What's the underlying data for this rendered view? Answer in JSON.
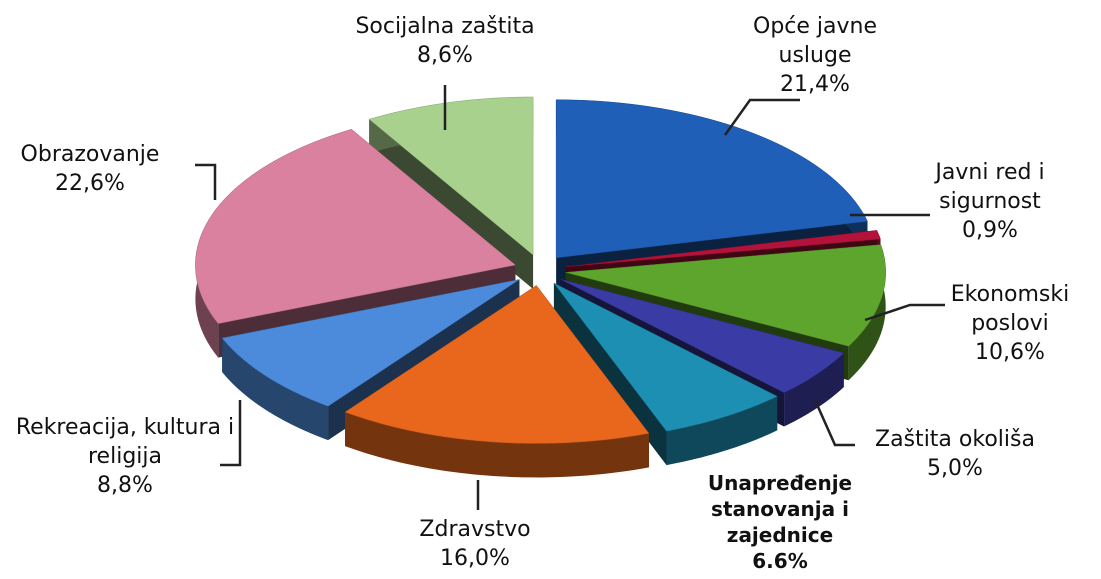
{
  "chart_data": {
    "type": "pie",
    "categories": [
      "Opće javne usluge",
      "Javni red i sigurnost",
      "Ekonomski poslovi",
      "Zaštita okoliša",
      "Unapređenje stanovanja i zajednice",
      "Zdravstvo",
      "Rekreacija, kultura i religija",
      "Obrazovanje",
      "Socijalna zaštita"
    ],
    "values": [
      21.4,
      0.9,
      10.6,
      5.0,
      6.6,
      16.0,
      8.8,
      22.6,
      8.6
    ],
    "value_labels": [
      "21,4%",
      "0,9%",
      "10,6%",
      "5,0%",
      "6.6%",
      "16,0%",
      "8,8%",
      "22,6%",
      "8,6%"
    ],
    "colors": [
      "#1f5fb8",
      "#b3123a",
      "#5ea52e",
      "#3b3ba6",
      "#1d8fb3",
      "#e8671c",
      "#4c8bdb",
      "#d9819f",
      "#a9d18e"
    ]
  }
}
